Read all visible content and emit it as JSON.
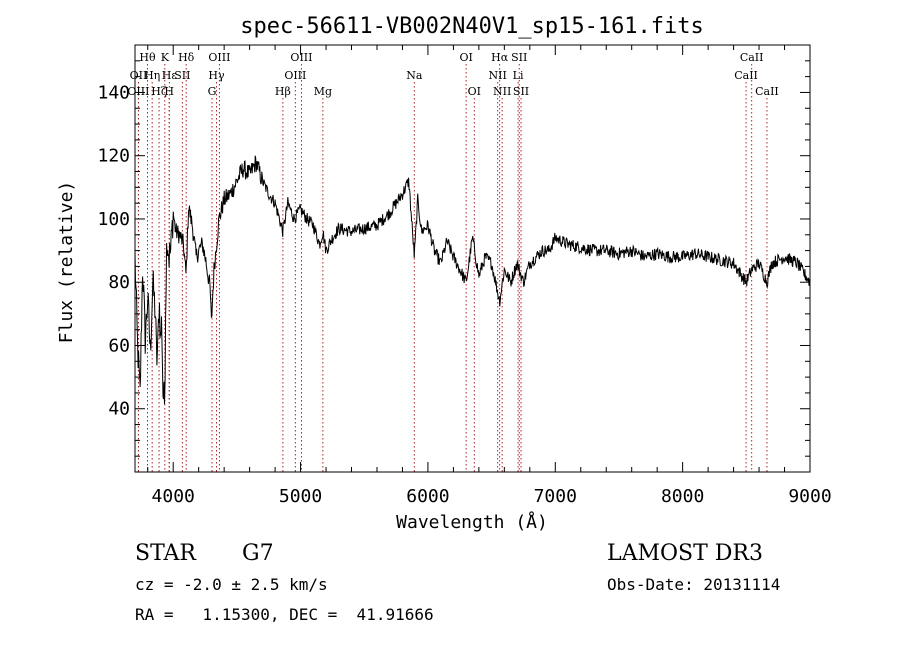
{
  "chart_data": {
    "type": "line",
    "title": "spec-56611-VB002N40V1_sp15-161.fits",
    "xlabel": "Wavelength (Å)",
    "ylabel": "Flux (relative)",
    "xlim": [
      3700,
      9000
    ],
    "ylim": [
      20,
      155
    ],
    "x_ticks": [
      4000,
      5000,
      6000,
      7000,
      8000,
      9000
    ],
    "y_ticks": [
      40,
      60,
      80,
      100,
      120,
      140
    ],
    "series": [
      {
        "name": "flux",
        "x": [
          3700,
          3720,
          3740,
          3760,
          3780,
          3800,
          3820,
          3840,
          3860,
          3870,
          3880,
          3890,
          3900,
          3910,
          3920,
          3933,
          3940,
          3950,
          3968,
          3980,
          4000,
          4020,
          4050,
          4080,
          4101,
          4120,
          4150,
          4180,
          4200,
          4230,
          4260,
          4290,
          4300,
          4320,
          4340,
          4360,
          4400,
          4450,
          4500,
          4550,
          4600,
          4650,
          4700,
          4750,
          4800,
          4861,
          4900,
          4950,
          5000,
          5050,
          5100,
          5150,
          5175,
          5200,
          5250,
          5300,
          5400,
          5500,
          5600,
          5700,
          5800,
          5850,
          5893,
          5920,
          5950,
          6000,
          6050,
          6100,
          6150,
          6200,
          6250,
          6300,
          6350,
          6400,
          6450,
          6500,
          6563,
          6600,
          6650,
          6700,
          6750,
          6800,
          6850,
          6900,
          6950,
          7000,
          7100,
          7200,
          7300,
          7400,
          7500,
          7600,
          7700,
          7800,
          7900,
          8000,
          8100,
          8200,
          8300,
          8400,
          8498,
          8542,
          8600,
          8662,
          8700,
          8800,
          8900,
          9000
        ],
        "values": [
          88,
          60,
          44,
          85,
          62,
          75,
          58,
          80,
          70,
          55,
          60,
          75,
          62,
          68,
          45,
          42,
          72,
          95,
          88,
          90,
          102,
          96,
          95,
          92,
          82,
          104,
          98,
          88,
          90,
          92,
          86,
          78,
          67,
          84,
          92,
          100,
          106,
          108,
          112,
          116,
          114,
          118,
          112,
          108,
          105,
          96,
          105,
          100,
          103,
          100,
          98,
          92,
          96,
          90,
          94,
          97,
          96,
          97,
          98,
          102,
          108,
          112,
          88,
          106,
          96,
          98,
          90,
          86,
          93,
          88,
          84,
          80,
          94,
          82,
          88,
          86,
          74,
          84,
          80,
          86,
          80,
          86,
          88,
          90,
          90,
          94,
          92,
          91,
          90,
          90,
          89,
          90,
          88,
          89,
          88,
          88,
          89,
          88,
          87,
          86,
          80,
          84,
          86,
          80,
          86,
          88,
          86,
          80
        ]
      }
    ],
    "spectral_lines": [
      {
        "label": "Hθ",
        "wl": 3798,
        "row": 0
      },
      {
        "label": "OII",
        "wl": 3727,
        "row": 1
      },
      {
        "label": "Hη",
        "wl": 3835,
        "row": 1
      },
      {
        "label": "OIII",
        "wl": 3727,
        "row": 2
      },
      {
        "label": "Hζ",
        "wl": 3889,
        "row": 2
      },
      {
        "label": "K",
        "wl": 3934,
        "row": 0
      },
      {
        "label": "Hε",
        "wl": 3970,
        "row": 1
      },
      {
        "label": "H",
        "wl": 3968,
        "row": 2
      },
      {
        "label": "SII",
        "wl": 4072,
        "row": 1
      },
      {
        "label": "Hδ",
        "wl": 4102,
        "row": 0
      },
      {
        "label": "OIII",
        "wl": 4363,
        "row": 0
      },
      {
        "label": "Hγ",
        "wl": 4340,
        "row": 1
      },
      {
        "label": "G",
        "wl": 4305,
        "row": 2
      },
      {
        "label": "Hβ",
        "wl": 4861,
        "row": 2
      },
      {
        "label": "OIII",
        "wl": 5007,
        "row": 0
      },
      {
        "label": "OIII",
        "wl": 4959,
        "row": 1
      },
      {
        "label": "Mg",
        "wl": 5175,
        "row": 2
      },
      {
        "label": "Na",
        "wl": 5893,
        "row": 1
      },
      {
        "label": "OI",
        "wl": 6300,
        "row": 0
      },
      {
        "label": "OI",
        "wl": 6364,
        "row": 2
      },
      {
        "label": "Hα",
        "wl": 6563,
        "row": 0
      },
      {
        "label": "NII",
        "wl": 6548,
        "row": 1
      },
      {
        "label": "NII",
        "wl": 6583,
        "row": 2
      },
      {
        "label": "SII",
        "wl": 6717,
        "row": 0
      },
      {
        "label": "Li",
        "wl": 6708,
        "row": 1
      },
      {
        "label": "SII",
        "wl": 6731,
        "row": 2
      },
      {
        "label": "CaII",
        "wl": 8542,
        "row": 0
      },
      {
        "label": "CaII",
        "wl": 8498,
        "row": 1
      },
      {
        "label": "CaII",
        "wl": 8662,
        "row": 2
      }
    ]
  },
  "footer": {
    "object_class": "STAR",
    "subclass": "G7",
    "cz": "cz = -2.0 ± 2.5 km/s",
    "coords": "RA =   1.15300, DEC =  41.91666",
    "survey": "LAMOST DR3",
    "obs_date": "Obs-Date: 20131114"
  },
  "colors": {
    "line_marker": "#b22222",
    "spectrum": "#000000"
  }
}
